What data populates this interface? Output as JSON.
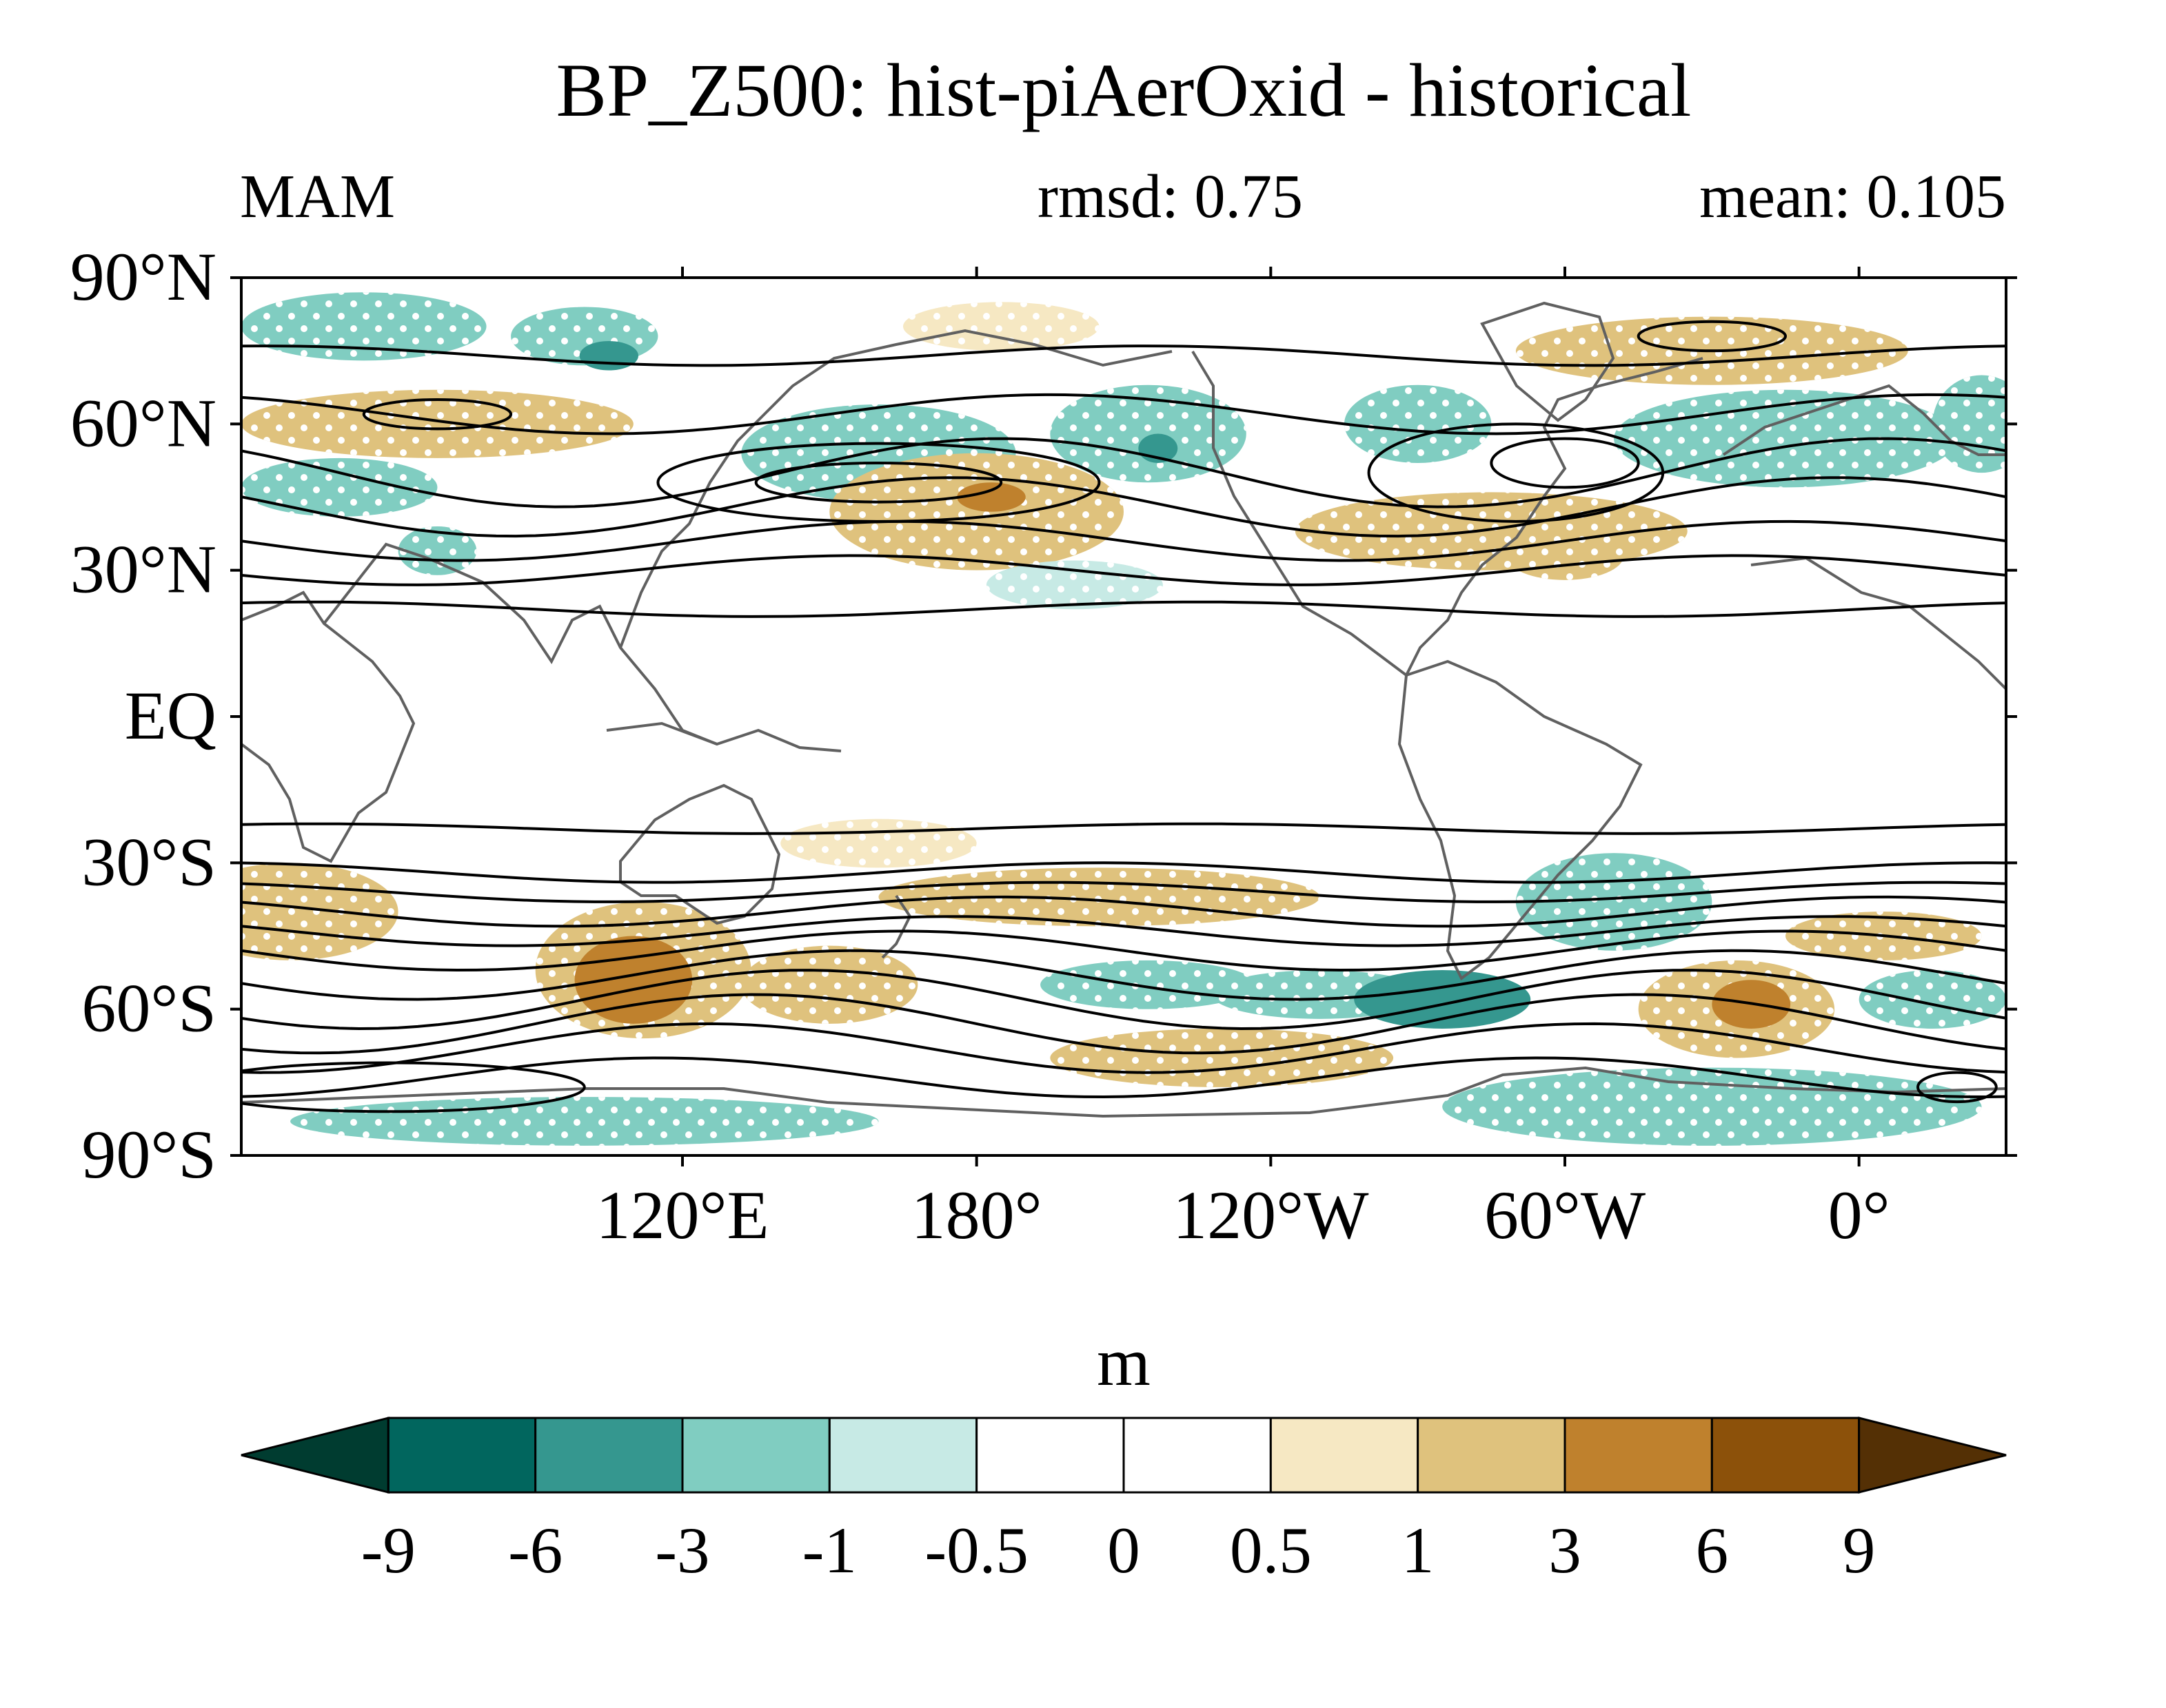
{
  "chart_data": {
    "type": "heatmap",
    "title": "BP_Z500: hist-piAerOxid - historical",
    "season": "MAM",
    "rmsd_label": "rmsd: 0.75",
    "mean_label": "mean: 0.105",
    "units": "m",
    "projection": "cylindrical equidistant, centred at 150°E (lon 30°E–390°E)",
    "lat_range": [
      -90,
      90
    ],
    "lon_range": [
      30,
      390
    ],
    "yticks": [
      {
        "lat": 90,
        "label": "90°N"
      },
      {
        "lat": 60,
        "label": "60°N"
      },
      {
        "lat": 30,
        "label": "30°N"
      },
      {
        "lat": 0,
        "label": "EQ"
      },
      {
        "lat": -30,
        "label": "30°S"
      },
      {
        "lat": -60,
        "label": "60°S"
      },
      {
        "lat": -90,
        "label": "90°S"
      }
    ],
    "xticks": [
      {
        "lon": 120,
        "label": "120°E"
      },
      {
        "lon": 180,
        "label": "180°"
      },
      {
        "lon": 240,
        "label": "120°W"
      },
      {
        "lon": 300,
        "label": "60°W"
      },
      {
        "lon": 360,
        "label": "0°"
      }
    ],
    "colorbar": {
      "levels": [
        "-9",
        "-6",
        "-3",
        "-1",
        "-0.5",
        "0",
        "0.5",
        "1",
        "3",
        "6",
        "9"
      ],
      "colors": [
        "#003c30",
        "#01665e",
        "#35978f",
        "#80cdc1",
        "#c7eae5",
        "#ffffff",
        "#ffffff",
        "#f6e8c3",
        "#dfc27d",
        "#bf812d",
        "#8c510a",
        "#543005"
      ]
    },
    "anomaly_blobs": [
      {
        "lon": 55,
        "lat": 80,
        "rx": 25,
        "ry": 7,
        "level": 3
      },
      {
        "lon": 100,
        "lat": 78,
        "rx": 15,
        "ry": 6,
        "level": 3
      },
      {
        "lon": 105,
        "lat": 74,
        "rx": 6,
        "ry": 3,
        "level": 2
      },
      {
        "lon": 70,
        "lat": 60,
        "rx": 40,
        "ry": 7,
        "level": 8
      },
      {
        "lon": 50,
        "lat": 47,
        "rx": 20,
        "ry": 6,
        "level": 3
      },
      {
        "lon": 70,
        "lat": 34,
        "rx": 8,
        "ry": 5,
        "level": 3
      },
      {
        "lon": 160,
        "lat": 54,
        "rx": 28,
        "ry": 10,
        "level": 3
      },
      {
        "lon": 180,
        "lat": 42,
        "rx": 30,
        "ry": 12,
        "level": 8
      },
      {
        "lon": 180,
        "lat": 42,
        "rx": 18,
        "ry": 7,
        "level": 8
      },
      {
        "lon": 183,
        "lat": 45,
        "rx": 7,
        "ry": 3,
        "level": 9
      },
      {
        "lon": 215,
        "lat": 58,
        "rx": 20,
        "ry": 10,
        "level": 3
      },
      {
        "lon": 217,
        "lat": 55,
        "rx": 4,
        "ry": 3,
        "level": 2
      },
      {
        "lon": 185,
        "lat": 80,
        "rx": 20,
        "ry": 5,
        "level": 7
      },
      {
        "lon": 200,
        "lat": 27,
        "rx": 18,
        "ry": 5,
        "level": 4
      },
      {
        "lon": 270,
        "lat": 60,
        "rx": 15,
        "ry": 8,
        "level": 3
      },
      {
        "lon": 285,
        "lat": 38,
        "rx": 40,
        "ry": 8,
        "level": 8
      },
      {
        "lon": 300,
        "lat": 33,
        "rx": 12,
        "ry": 5,
        "level": 8
      },
      {
        "lon": 330,
        "lat": 75,
        "rx": 40,
        "ry": 7,
        "level": 8
      },
      {
        "lon": 345,
        "lat": 57,
        "rx": 35,
        "ry": 10,
        "level": 3
      },
      {
        "lon": 385,
        "lat": 60,
        "rx": 10,
        "ry": 10,
        "level": 3
      },
      {
        "lon": 40,
        "lat": -40,
        "rx": 22,
        "ry": 10,
        "level": 8
      },
      {
        "lon": 112,
        "lat": -52,
        "rx": 22,
        "ry": 14,
        "level": 8
      },
      {
        "lon": 110,
        "lat": -54,
        "rx": 12,
        "ry": 9,
        "level": 9
      },
      {
        "lon": 150,
        "lat": -55,
        "rx": 18,
        "ry": 8,
        "level": 8
      },
      {
        "lon": 160,
        "lat": -26,
        "rx": 20,
        "ry": 5,
        "level": 7
      },
      {
        "lon": 205,
        "lat": -37,
        "rx": 45,
        "ry": 6,
        "level": 8
      },
      {
        "lon": 215,
        "lat": -55,
        "rx": 22,
        "ry": 5,
        "level": 3
      },
      {
        "lon": 250,
        "lat": -57,
        "rx": 22,
        "ry": 5,
        "level": 3
      },
      {
        "lon": 275,
        "lat": -58,
        "rx": 18,
        "ry": 6,
        "level": 2
      },
      {
        "lon": 230,
        "lat": -70,
        "rx": 35,
        "ry": 6,
        "level": 8
      },
      {
        "lon": 310,
        "lat": -38,
        "rx": 20,
        "ry": 10,
        "level": 3
      },
      {
        "lon": 335,
        "lat": -60,
        "rx": 20,
        "ry": 10,
        "level": 8
      },
      {
        "lon": 338,
        "lat": -59,
        "rx": 8,
        "ry": 5,
        "level": 9
      },
      {
        "lon": 365,
        "lat": -45,
        "rx": 20,
        "ry": 5,
        "level": 8
      },
      {
        "lon": 375,
        "lat": -58,
        "rx": 15,
        "ry": 6,
        "level": 3
      },
      {
        "lon": 330,
        "lat": -80,
        "rx": 55,
        "ry": 8,
        "level": 3
      },
      {
        "lon": 100,
        "lat": -83,
        "rx": 60,
        "ry": 5,
        "level": 3
      }
    ]
  }
}
